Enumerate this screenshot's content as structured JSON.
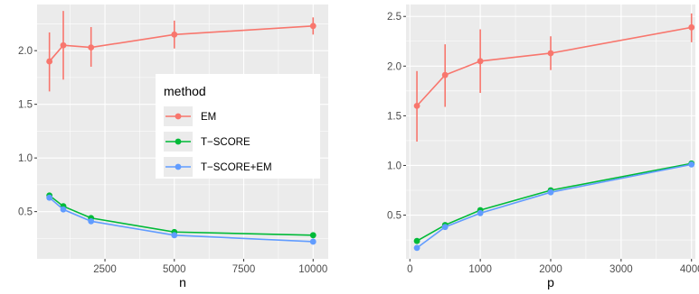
{
  "legend": {
    "title": "method",
    "entries": [
      {
        "label": "EM",
        "color": "#F8766D"
      },
      {
        "label": "T−SCORE",
        "color": "#00BA38"
      },
      {
        "label": "T−SCORE+EM",
        "color": "#619CFF"
      }
    ]
  },
  "chart_data": [
    {
      "type": "line",
      "xlabel": "n",
      "ylabel": "",
      "xlim": [
        55,
        10545
      ],
      "ylim": [
        0.06,
        2.43
      ],
      "x_ticks": [
        2500,
        5000,
        7500,
        10000
      ],
      "x_tick_labels": [
        "2500",
        "5000",
        "7500",
        "10000"
      ],
      "y_ticks": [
        0.5,
        1.0,
        1.5,
        2.0
      ],
      "y_tick_labels": [
        "0.5",
        "1.0",
        "1.5",
        "2.0"
      ],
      "series": [
        {
          "name": "EM",
          "color": "#F8766D",
          "x": [
            500,
            1000,
            2000,
            5000,
            10000
          ],
          "y": [
            1.9,
            2.05,
            2.03,
            2.15,
            2.23
          ],
          "ymin": [
            1.62,
            1.73,
            1.85,
            2.02,
            2.15
          ],
          "ymax": [
            2.17,
            2.37,
            2.22,
            2.28,
            2.31
          ]
        },
        {
          "name": "T−SCORE",
          "color": "#00BA38",
          "x": [
            500,
            1000,
            2000,
            5000,
            10000
          ],
          "y": [
            0.65,
            0.55,
            0.44,
            0.31,
            0.28
          ]
        },
        {
          "name": "T−SCORE+EM",
          "color": "#619CFF",
          "x": [
            500,
            1000,
            2000,
            5000,
            10000
          ],
          "y": [
            0.63,
            0.52,
            0.41,
            0.28,
            0.22
          ]
        }
      ]
    },
    {
      "type": "line",
      "xlabel": "p",
      "ylabel": "",
      "xlim": [
        -55,
        4055
      ],
      "ylim": [
        0.06,
        2.62
      ],
      "x_ticks": [
        0,
        1000,
        2000,
        3000,
        4000
      ],
      "x_tick_labels": [
        "0",
        "1000",
        "2000",
        "3000",
        "4000"
      ],
      "y_ticks": [
        0.5,
        1.0,
        1.5,
        2.0,
        2.5
      ],
      "y_tick_labels": [
        "0.5",
        "1.0",
        "1.5",
        "2.0",
        "2.5"
      ],
      "series": [
        {
          "name": "EM",
          "color": "#F8766D",
          "x": [
            100,
            500,
            1000,
            2000,
            4000
          ],
          "y": [
            1.6,
            1.91,
            2.05,
            2.13,
            2.39
          ],
          "ymin": [
            1.24,
            1.59,
            1.73,
            1.96,
            2.24
          ],
          "ymax": [
            1.95,
            2.22,
            2.37,
            2.3,
            2.53
          ]
        },
        {
          "name": "T−SCORE",
          "color": "#00BA38",
          "x": [
            100,
            500,
            1000,
            2000,
            4000
          ],
          "y": [
            0.24,
            0.4,
            0.55,
            0.75,
            1.02
          ]
        },
        {
          "name": "T−SCORE+EM",
          "color": "#619CFF",
          "x": [
            100,
            500,
            1000,
            2000,
            4000
          ],
          "y": [
            0.17,
            0.38,
            0.52,
            0.73,
            1.01
          ]
        }
      ]
    }
  ]
}
